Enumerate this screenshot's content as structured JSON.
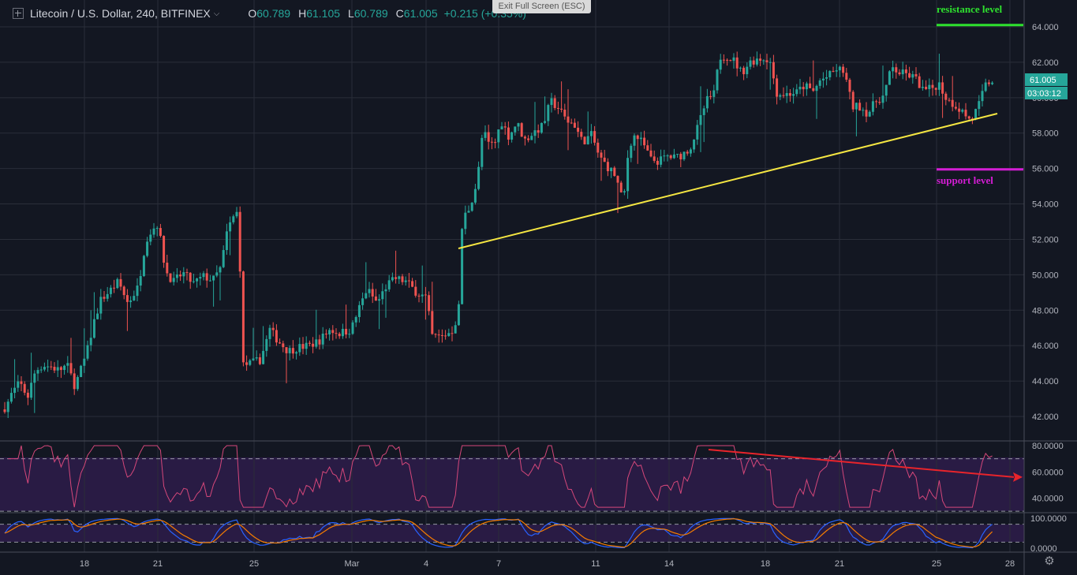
{
  "header": {
    "symbol": "Litecoin / U.S. Dollar, 240, BITFINEX",
    "o_label": "O",
    "o_value": "60.789",
    "h_label": "H",
    "h_value": "61.105",
    "l_label": "L",
    "l_value": "60.789",
    "c_label": "C",
    "c_value": "61.005",
    "change": "+0.215 (+0.35%)",
    "exit_full_screen": "Exit Full Screen (ESC)"
  },
  "colors": {
    "background": "#131722",
    "up": "#26a69a",
    "down": "#ef5350",
    "trendline": "#f5e642",
    "resistance": "#2ee12e",
    "support": "#d41dd4",
    "rsi_line": "#d5477a",
    "divergence": "#e8242b"
  },
  "chart_data": [
    {
      "type": "candlestick",
      "title": "Litecoin / U.S. Dollar, 240, BITFINEX",
      "ylim": [
        41.0,
        65.0
      ],
      "y_ticks": [
        "64.000",
        "62.000",
        "60.000",
        "58.000",
        "56.000",
        "54.000",
        "52.000",
        "50.000",
        "48.000",
        "46.000",
        "44.000",
        "42.000"
      ],
      "x_ticks": [
        "18",
        "21",
        "25",
        "Mar",
        "4",
        "7",
        "11",
        "14",
        "18",
        "21",
        "25",
        "28"
      ],
      "price_path": [
        [
          0,
          42.2
        ],
        [
          8,
          42.6
        ],
        [
          15,
          43.3
        ],
        [
          25,
          43.9
        ],
        [
          35,
          43.1
        ],
        [
          45,
          44.6
        ],
        [
          55,
          44.9
        ],
        [
          65,
          44.8
        ],
        [
          75,
          44.6
        ],
        [
          85,
          44.9
        ],
        [
          95,
          43.7
        ],
        [
          110,
          45.6
        ],
        [
          120,
          47.5
        ],
        [
          128,
          48.6
        ],
        [
          135,
          48.9
        ],
        [
          150,
          49.6
        ],
        [
          162,
          48.4
        ],
        [
          175,
          49.3
        ],
        [
          185,
          52.0
        ],
        [
          192,
          52.5
        ],
        [
          200,
          52.9
        ],
        [
          210,
          50.2
        ],
        [
          220,
          49.6
        ],
        [
          232,
          50.1
        ],
        [
          245,
          49.5
        ],
        [
          258,
          49.9
        ],
        [
          270,
          49.7
        ],
        [
          280,
          50.4
        ],
        [
          288,
          52.5
        ],
        [
          295,
          53.2
        ],
        [
          302,
          53.6
        ],
        [
          308,
          44.9
        ],
        [
          318,
          45.0
        ],
        [
          330,
          45.2
        ],
        [
          342,
          46.9
        ],
        [
          352,
          46.3
        ],
        [
          365,
          45.7
        ],
        [
          378,
          45.9
        ],
        [
          392,
          46.0
        ],
        [
          405,
          46.3
        ],
        [
          418,
          46.9
        ],
        [
          430,
          46.7
        ],
        [
          445,
          46.9
        ],
        [
          455,
          48.1
        ],
        [
          465,
          49.2
        ],
        [
          478,
          48.4
        ],
        [
          490,
          49.4
        ],
        [
          502,
          49.8
        ],
        [
          515,
          49.6
        ],
        [
          528,
          49.0
        ],
        [
          540,
          48.7
        ],
        [
          548,
          46.5
        ],
        [
          560,
          46.5
        ],
        [
          575,
          46.9
        ],
        [
          582,
          48.3
        ],
        [
          586,
          53.1
        ],
        [
          595,
          53.8
        ],
        [
          605,
          55.3
        ],
        [
          612,
          58.2
        ],
        [
          620,
          57.3
        ],
        [
          628,
          57.5
        ],
        [
          635,
          58.7
        ],
        [
          645,
          57.8
        ],
        [
          655,
          58.6
        ],
        [
          665,
          57.6
        ],
        [
          678,
          58.1
        ],
        [
          688,
          58.4
        ],
        [
          698,
          59.8
        ],
        [
          708,
          59.4
        ],
        [
          718,
          58.7
        ],
        [
          728,
          58.5
        ],
        [
          738,
          57.5
        ],
        [
          750,
          57.9
        ],
        [
          760,
          56.6
        ],
        [
          770,
          56.1
        ],
        [
          780,
          55.6
        ],
        [
          790,
          54.0
        ],
        [
          797,
          57.3
        ],
        [
          805,
          57.9
        ],
        [
          815,
          57.4
        ],
        [
          825,
          56.5
        ],
        [
          835,
          56.4
        ],
        [
          845,
          56.7
        ],
        [
          855,
          56.6
        ],
        [
          865,
          56.8
        ],
        [
          875,
          57.2
        ],
        [
          885,
          58.4
        ],
        [
          895,
          59.8
        ],
        [
          905,
          60.2
        ],
        [
          912,
          62.3
        ],
        [
          920,
          62.4
        ],
        [
          930,
          62.1
        ],
        [
          940,
          61.4
        ],
        [
          950,
          62.0
        ],
        [
          960,
          62.2
        ],
        [
          975,
          62.2
        ],
        [
          985,
          60.2
        ],
        [
          998,
          60.2
        ],
        [
          1010,
          60.3
        ],
        [
          1020,
          60.7
        ],
        [
          1030,
          60.3
        ],
        [
          1040,
          61.0
        ],
        [
          1050,
          61.2
        ],
        [
          1060,
          61.6
        ],
        [
          1070,
          61.5
        ],
        [
          1080,
          59.5
        ],
        [
          1090,
          59.5
        ],
        [
          1100,
          59.1
        ],
        [
          1110,
          59.8
        ],
        [
          1120,
          60.1
        ],
        [
          1130,
          61.7
        ],
        [
          1140,
          61.4
        ],
        [
          1150,
          61.3
        ],
        [
          1160,
          61.1
        ],
        [
          1170,
          60.4
        ],
        [
          1180,
          60.5
        ],
        [
          1190,
          60.8
        ],
        [
          1200,
          59.9
        ],
        [
          1210,
          59.6
        ],
        [
          1220,
          59.2
        ],
        [
          1230,
          58.7
        ],
        [
          1240,
          59.5
        ],
        [
          1250,
          60.8
        ],
        [
          1260,
          61.0
        ]
      ],
      "annotations": [
        {
          "text": "resistance level",
          "y": 64.1
        },
        {
          "text": "support level",
          "y": 55.95
        },
        {
          "text": "trendline",
          "from": [
            52,
            51.4
          ],
          "to": [
            27.4,
            59.1
          ]
        }
      ],
      "last_price_label": "61.005",
      "countdown_label": "03:03:12"
    },
    {
      "type": "line",
      "ylim": [
        30,
        85
      ],
      "y_ticks": [
        "80.0000",
        "60.0000",
        "40.0000"
      ],
      "bands": [
        70,
        30
      ],
      "divergence_line": {
        "from": [
          70,
          77
        ],
        "to": [
          95,
          56
        ]
      }
    },
    {
      "type": "line",
      "ylim": [
        -10,
        110
      ],
      "y_ticks": [
        "100.0000",
        "0.0000"
      ],
      "bands": [
        80,
        20
      ]
    }
  ]
}
